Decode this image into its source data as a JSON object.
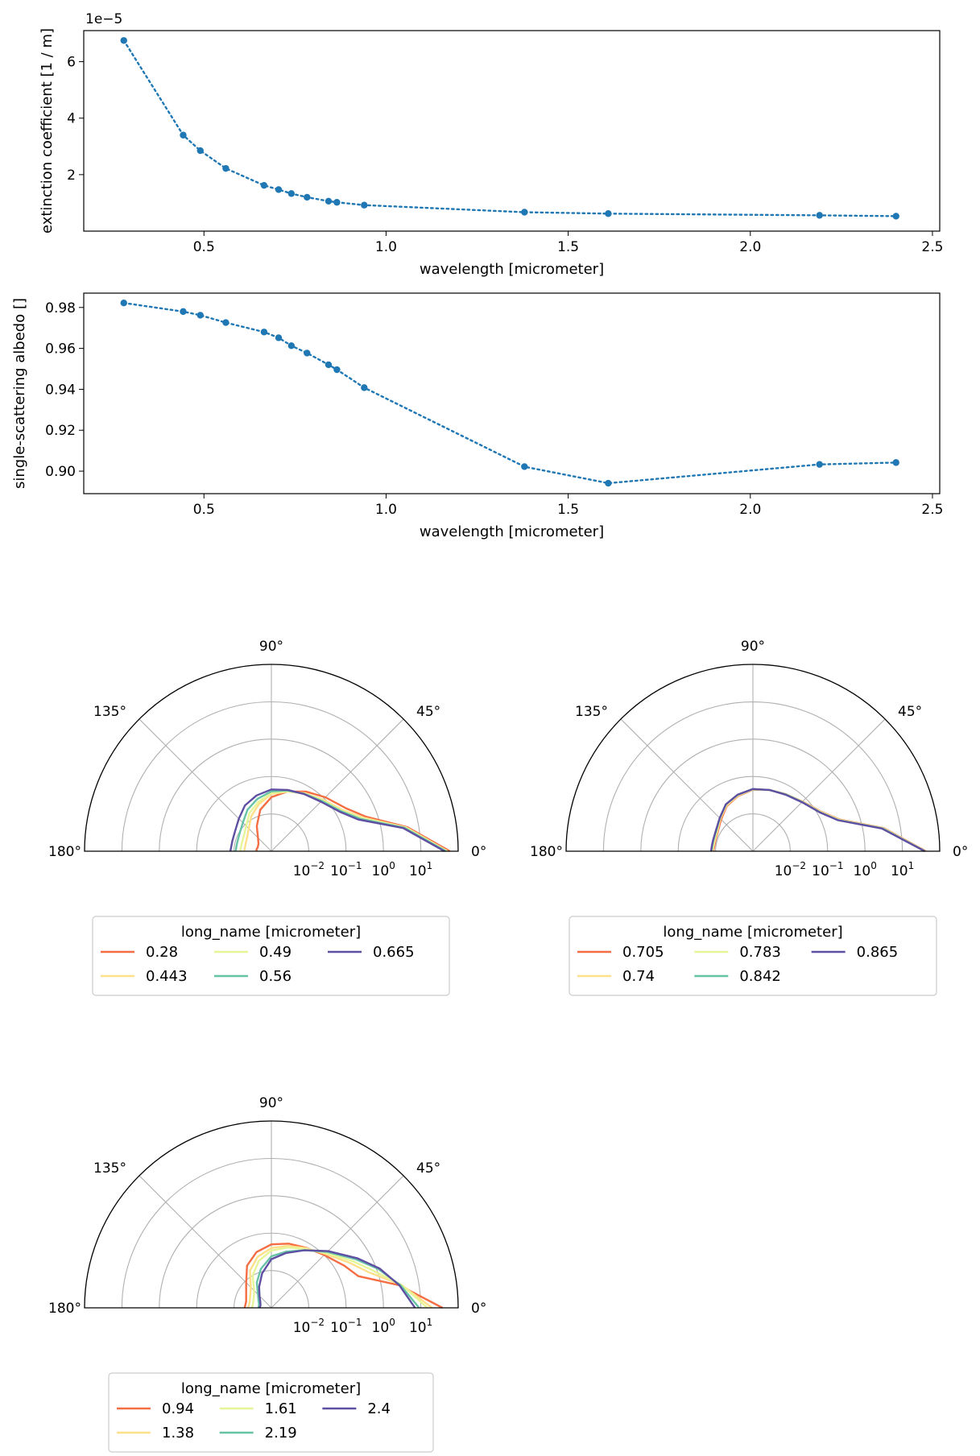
{
  "chart_data": [
    {
      "type": "line",
      "xlabel": "wavelength [micrometer]",
      "ylabel": "extinction coefficient [1 / m]",
      "offset_label": "1e−5",
      "y_scale_factor": 1e-05,
      "xlim": [
        0.17,
        2.52
      ],
      "ylim": [
        0.0,
        7.1
      ],
      "xticks": [
        0.5,
        1.0,
        1.5,
        2.0,
        2.5
      ],
      "xticklabels": [
        "0.5",
        "1.0",
        "1.5",
        "2.0",
        "2.5"
      ],
      "yticks": [
        2,
        4,
        6
      ],
      "yticklabels": [
        "2",
        "4",
        "6"
      ],
      "color": "#1f77b4",
      "series": [
        {
          "x": [
            0.28,
            0.443,
            0.49,
            0.56,
            0.665,
            0.705,
            0.74,
            0.783,
            0.842,
            0.865,
            0.94,
            1.38,
            1.61,
            2.19,
            2.4
          ],
          "y": [
            6.75,
            3.4,
            2.85,
            2.22,
            1.62,
            1.47,
            1.33,
            1.2,
            1.06,
            1.02,
            0.92,
            0.67,
            0.62,
            0.56,
            0.53
          ]
        }
      ]
    },
    {
      "type": "line",
      "xlabel": "wavelength [micrometer]",
      "ylabel": "single-scattering albedo []",
      "xlim": [
        0.17,
        2.52
      ],
      "ylim": [
        0.889,
        0.987
      ],
      "xticks": [
        0.5,
        1.0,
        1.5,
        2.0,
        2.5
      ],
      "xticklabels": [
        "0.5",
        "1.0",
        "1.5",
        "2.0",
        "2.5"
      ],
      "yticks": [
        0.9,
        0.92,
        0.94,
        0.96,
        0.98
      ],
      "yticklabels": [
        "0.90",
        "0.92",
        "0.94",
        "0.96",
        "0.98"
      ],
      "color": "#1f77b4",
      "series": [
        {
          "x": [
            0.28,
            0.443,
            0.49,
            0.56,
            0.665,
            0.705,
            0.74,
            0.783,
            0.842,
            0.865,
            0.94,
            1.38,
            1.61,
            2.19,
            2.4
          ],
          "y": [
            0.9822,
            0.978,
            0.9762,
            0.9726,
            0.968,
            0.9652,
            0.9613,
            0.9577,
            0.952,
            0.9496,
            0.9408,
            0.9022,
            0.8941,
            0.9033,
            0.9042
          ]
        }
      ]
    },
    {
      "type": "polar",
      "r_scale": "log",
      "rlim": [
        0.001,
        100
      ],
      "r_ticks": [
        0.01,
        0.1,
        1,
        10
      ],
      "r_ticklabels": [
        {
          "base": "10",
          "exp": "−2"
        },
        {
          "base": "10",
          "exp": "−1"
        },
        {
          "base": "10",
          "exp": "0"
        },
        {
          "base": "10",
          "exp": "1"
        }
      ],
      "theta_ticklabels": [
        "0°",
        "45°",
        "90°",
        "135°",
        "180°"
      ],
      "legend_title": "long_name [micrometer]",
      "series": [
        {
          "name": "0.28",
          "color": "#f46d43",
          "theta": [
            0,
            10,
            20,
            30,
            45,
            60,
            75,
            90,
            105,
            120,
            135,
            150,
            165,
            172,
            180
          ],
          "r": [
            60,
            5,
            0.5,
            0.2,
            0.11,
            0.07,
            0.045,
            0.028,
            0.014,
            0.006,
            0.0032,
            0.0025,
            0.0024,
            0.0025,
            0.0025
          ]
        },
        {
          "name": "0.443",
          "color": "#fee08b",
          "theta": [
            0,
            10,
            20,
            30,
            45,
            60,
            75,
            90,
            105,
            120,
            135,
            150,
            165,
            172,
            180
          ],
          "r": [
            52,
            4.6,
            0.42,
            0.16,
            0.09,
            0.062,
            0.045,
            0.034,
            0.02,
            0.012,
            0.0072,
            0.0056,
            0.0052,
            0.0052,
            0.0053
          ]
        },
        {
          "name": "0.49",
          "color": "#e6f598",
          "theta": [
            0,
            10,
            20,
            30,
            45,
            60,
            75,
            90,
            105,
            120,
            135,
            150,
            165,
            172,
            180
          ],
          "r": [
            50,
            4.4,
            0.38,
            0.15,
            0.085,
            0.06,
            0.046,
            0.036,
            0.023,
            0.015,
            0.009,
            0.007,
            0.0066,
            0.0066,
            0.0068
          ]
        },
        {
          "name": "0.56",
          "color": "#66c2a5",
          "theta": [
            0,
            10,
            20,
            30,
            45,
            60,
            75,
            90,
            105,
            120,
            135,
            150,
            165,
            172,
            180
          ],
          "r": [
            47,
            4.1,
            0.34,
            0.14,
            0.08,
            0.059,
            0.048,
            0.04,
            0.028,
            0.019,
            0.012,
            0.0095,
            0.0088,
            0.0088,
            0.009
          ]
        },
        {
          "name": "0.665",
          "color": "#5e4fa2",
          "theta": [
            0,
            10,
            20,
            30,
            45,
            60,
            75,
            90,
            105,
            120,
            135,
            150,
            165,
            172,
            180
          ],
          "r": [
            43,
            3.8,
            0.3,
            0.13,
            0.075,
            0.058,
            0.05,
            0.045,
            0.035,
            0.026,
            0.017,
            0.013,
            0.012,
            0.012,
            0.0125
          ]
        }
      ]
    },
    {
      "type": "polar",
      "r_scale": "log",
      "rlim": [
        0.001,
        100
      ],
      "r_ticks": [
        0.01,
        0.1,
        1,
        10
      ],
      "r_ticklabels": [
        {
          "base": "10",
          "exp": "−2"
        },
        {
          "base": "10",
          "exp": "−1"
        },
        {
          "base": "10",
          "exp": "0"
        },
        {
          "base": "10",
          "exp": "1"
        }
      ],
      "theta_ticklabels": [
        "0°",
        "45°",
        "90°",
        "135°",
        "180°"
      ],
      "legend_title": "long_name [micrometer]",
      "series": [
        {
          "name": "0.705",
          "color": "#f46d43",
          "theta": [
            0,
            10,
            20,
            30,
            45,
            60,
            75,
            90,
            105,
            120,
            135,
            150,
            165,
            172,
            180
          ],
          "r": [
            43,
            3.6,
            0.3,
            0.13,
            0.076,
            0.058,
            0.05,
            0.044,
            0.034,
            0.025,
            0.016,
            0.012,
            0.011,
            0.011,
            0.0115
          ]
        },
        {
          "name": "0.74",
          "color": "#fee08b",
          "theta": [
            0,
            10,
            20,
            30,
            45,
            60,
            75,
            90,
            105,
            120,
            135,
            150,
            165,
            172,
            180
          ],
          "r": [
            42,
            3.5,
            0.29,
            0.127,
            0.075,
            0.058,
            0.05,
            0.045,
            0.035,
            0.026,
            0.017,
            0.0125,
            0.0115,
            0.0115,
            0.012
          ]
        },
        {
          "name": "0.783",
          "color": "#e6f598",
          "theta": [
            0,
            10,
            20,
            30,
            45,
            60,
            75,
            90,
            105,
            120,
            135,
            150,
            165,
            172,
            180
          ],
          "r": [
            41,
            3.4,
            0.28,
            0.124,
            0.074,
            0.057,
            0.05,
            0.045,
            0.036,
            0.027,
            0.0175,
            0.013,
            0.012,
            0.012,
            0.0125
          ]
        },
        {
          "name": "0.842",
          "color": "#66c2a5",
          "theta": [
            0,
            10,
            20,
            30,
            45,
            60,
            75,
            90,
            105,
            120,
            135,
            150,
            165,
            172,
            180
          ],
          "r": [
            40,
            3.3,
            0.27,
            0.12,
            0.073,
            0.057,
            0.05,
            0.046,
            0.037,
            0.028,
            0.018,
            0.0135,
            0.0125,
            0.0125,
            0.013
          ]
        },
        {
          "name": "0.865",
          "color": "#5e4fa2",
          "theta": [
            0,
            10,
            20,
            30,
            45,
            60,
            75,
            90,
            105,
            120,
            135,
            150,
            165,
            172,
            180
          ],
          "r": [
            40,
            3.2,
            0.265,
            0.118,
            0.072,
            0.056,
            0.05,
            0.046,
            0.037,
            0.028,
            0.018,
            0.0138,
            0.0128,
            0.0128,
            0.0132
          ]
        }
      ]
    },
    {
      "type": "polar",
      "r_scale": "log",
      "rlim": [
        0.001,
        100
      ],
      "r_ticks": [
        0.01,
        0.1,
        1,
        10
      ],
      "r_ticklabels": [
        {
          "base": "10",
          "exp": "−2"
        },
        {
          "base": "10",
          "exp": "−1"
        },
        {
          "base": "10",
          "exp": "0"
        },
        {
          "base": "10",
          "exp": "1"
        }
      ],
      "theta_ticklabels": [
        "0°",
        "45°",
        "90°",
        "135°",
        "180°"
      ],
      "legend_title": "long_name [micrometer]",
      "series": [
        {
          "name": "0.94",
          "color": "#f46d43",
          "theta": [
            0,
            10,
            20,
            30,
            45,
            60,
            75,
            90,
            105,
            120,
            135,
            150,
            165,
            172,
            180
          ],
          "r": [
            38,
            3.0,
            0.3,
            0.18,
            0.1,
            0.072,
            0.06,
            0.05,
            0.035,
            0.02,
            0.009,
            0.006,
            0.005,
            0.005,
            0.0052
          ]
        },
        {
          "name": "1.38",
          "color": "#fee08b",
          "theta": [
            0,
            10,
            20,
            30,
            45,
            60,
            75,
            90,
            105,
            120,
            135,
            150,
            165,
            172,
            180
          ],
          "r": [
            20,
            3.4,
            0.6,
            0.26,
            0.11,
            0.07,
            0.052,
            0.04,
            0.026,
            0.014,
            0.006,
            0.0045,
            0.004,
            0.004,
            0.0042
          ]
        },
        {
          "name": "1.61",
          "color": "#e6f598",
          "theta": [
            0,
            10,
            20,
            30,
            45,
            60,
            75,
            90,
            105,
            120,
            135,
            150,
            165,
            172,
            180
          ],
          "r": [
            15,
            3.4,
            0.8,
            0.32,
            0.12,
            0.066,
            0.047,
            0.034,
            0.02,
            0.01,
            0.0045,
            0.0035,
            0.0032,
            0.0032,
            0.0033
          ]
        },
        {
          "name": "2.19",
          "color": "#66c2a5",
          "theta": [
            0,
            10,
            20,
            30,
            45,
            60,
            75,
            90,
            105,
            120,
            135,
            150,
            165,
            172,
            180
          ],
          "r": [
            9,
            3.2,
            1.1,
            0.4,
            0.13,
            0.06,
            0.036,
            0.024,
            0.012,
            0.006,
            0.0032,
            0.0025,
            0.0022,
            0.0022,
            0.0022
          ]
        },
        {
          "name": "2.4",
          "color": "#5e4fa2",
          "theta": [
            0,
            10,
            20,
            30,
            45,
            60,
            75,
            90,
            105,
            120,
            135,
            150,
            165,
            172,
            180
          ],
          "r": [
            7,
            3.0,
            1.2,
            0.45,
            0.14,
            0.06,
            0.033,
            0.02,
            0.009,
            0.0045,
            0.0028,
            0.0022,
            0.002,
            0.002,
            0.0021
          ]
        }
      ]
    }
  ]
}
